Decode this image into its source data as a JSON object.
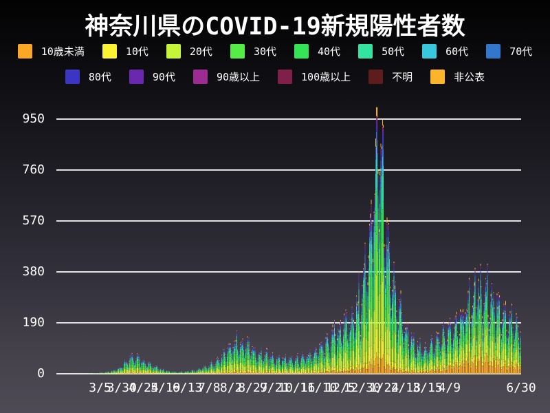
{
  "title": "神奈川県のCOVID-19新規陽性者数",
  "legend": {
    "row_split": [
      8,
      6
    ]
  },
  "chart_data": {
    "type": "bar",
    "stacked": true,
    "title": "神奈川県のCOVID-19新規陽性者数",
    "xlabel": "",
    "ylabel": "",
    "grid": true,
    "legend_position": "top",
    "ylim": [
      0,
      1045
    ],
    "y_ticks": [
      0,
      190,
      380,
      570,
      760,
      950
    ],
    "days": 533,
    "x_tick_labels": [
      "3/5",
      "3/30",
      "4/24",
      "5/19",
      "6/13",
      "7/8",
      "8/2",
      "8/27",
      "9/21",
      "10/16",
      "11/10",
      "12/5",
      "12/30",
      "1/24",
      "2/18",
      "3/15",
      "4/9"
    ],
    "x_tick_days": [
      50,
      75,
      100,
      125,
      150,
      175,
      200,
      225,
      250,
      275,
      300,
      325,
      350,
      375,
      400,
      425,
      450
    ],
    "x_final_tick": {
      "label": "6/30",
      "day": 532
    },
    "series": [
      {
        "name": "10歳未満",
        "color": "#FBA726",
        "share": 0.048
      },
      {
        "name": "10代",
        "color": "#FCF332",
        "share": 0.082
      },
      {
        "name": "20代",
        "color": "#C6F436",
        "share": 0.232
      },
      {
        "name": "30代",
        "color": "#56EC48",
        "share": 0.162
      },
      {
        "name": "40代",
        "color": "#34E356",
        "share": 0.148
      },
      {
        "name": "50代",
        "color": "#33E5A0",
        "share": 0.118
      },
      {
        "name": "60代",
        "color": "#37C8DE",
        "share": 0.062
      },
      {
        "name": "70代",
        "color": "#3377CD",
        "share": 0.052
      },
      {
        "name": "80代",
        "color": "#3A35C3",
        "share": 0.04
      },
      {
        "name": "90代",
        "color": "#6A28AE",
        "share": 0.022
      },
      {
        "name": "90歳以上",
        "color": "#9C2B92",
        "share": 0.01
      },
      {
        "name": "100歳以上",
        "color": "#7E2049",
        "share": 0.002
      },
      {
        "name": "不明",
        "color": "#5E1D1D",
        "share": 0.004
      },
      {
        "name": "非公表",
        "color": "#FCB42B",
        "share": 0.018
      }
    ],
    "daily_total_keypoints": [
      [
        0,
        0
      ],
      [
        20,
        0.4
      ],
      [
        35,
        1
      ],
      [
        45,
        2
      ],
      [
        50,
        4
      ],
      [
        58,
        7
      ],
      [
        65,
        12
      ],
      [
        72,
        22
      ],
      [
        80,
        48
      ],
      [
        87,
        68
      ],
      [
        93,
        60
      ],
      [
        100,
        48
      ],
      [
        107,
        36
      ],
      [
        114,
        25
      ],
      [
        121,
        15
      ],
      [
        130,
        9
      ],
      [
        140,
        7
      ],
      [
        150,
        10
      ],
      [
        158,
        14
      ],
      [
        165,
        20
      ],
      [
        172,
        28
      ],
      [
        180,
        42
      ],
      [
        188,
        62
      ],
      [
        196,
        90
      ],
      [
        204,
        118
      ],
      [
        211,
        130
      ],
      [
        218,
        112
      ],
      [
        225,
        88
      ],
      [
        232,
        76
      ],
      [
        240,
        72
      ],
      [
        248,
        64
      ],
      [
        256,
        60
      ],
      [
        264,
        58
      ],
      [
        272,
        58
      ],
      [
        280,
        62
      ],
      [
        288,
        70
      ],
      [
        296,
        85
      ],
      [
        304,
        105
      ],
      [
        312,
        130
      ],
      [
        320,
        165
      ],
      [
        328,
        190
      ],
      [
        336,
        210
      ],
      [
        344,
        260
      ],
      [
        350,
        320
      ],
      [
        355,
        430
      ],
      [
        359,
        560
      ],
      [
        363,
        760
      ],
      [
        367,
        930
      ],
      [
        371,
        820
      ],
      [
        375,
        640
      ],
      [
        380,
        470
      ],
      [
        385,
        360
      ],
      [
        390,
        290
      ],
      [
        395,
        220
      ],
      [
        400,
        165
      ],
      [
        405,
        135
      ],
      [
        410,
        115
      ],
      [
        415,
        100
      ],
      [
        420,
        95
      ],
      [
        425,
        100
      ],
      [
        430,
        110
      ],
      [
        435,
        125
      ],
      [
        440,
        140
      ],
      [
        445,
        155
      ],
      [
        450,
        175
      ],
      [
        456,
        200
      ],
      [
        462,
        230
      ],
      [
        468,
        255
      ],
      [
        475,
        280
      ],
      [
        482,
        305
      ],
      [
        488,
        318
      ],
      [
        492,
        325
      ],
      [
        496,
        305
      ],
      [
        500,
        280
      ],
      [
        505,
        255
      ],
      [
        510,
        230
      ],
      [
        515,
        210
      ],
      [
        520,
        195
      ],
      [
        526,
        185
      ],
      [
        532,
        192
      ]
    ],
    "daily_total_max": 995,
    "weekday_factors": [
      0.8,
      0.55,
      0.78,
      1.0,
      1.08,
      1.14,
      1.16
    ],
    "weekday_offset": 3,
    "under10_share_boost_keypoints": [
      [
        0,
        1
      ],
      [
        300,
        1.1
      ],
      [
        340,
        1.4
      ],
      [
        360,
        1.3
      ],
      [
        400,
        1.2
      ],
      [
        425,
        1.8
      ],
      [
        445,
        3.2
      ],
      [
        470,
        4.2
      ],
      [
        495,
        4.0
      ],
      [
        515,
        3.4
      ],
      [
        532,
        3.2
      ]
    ]
  }
}
